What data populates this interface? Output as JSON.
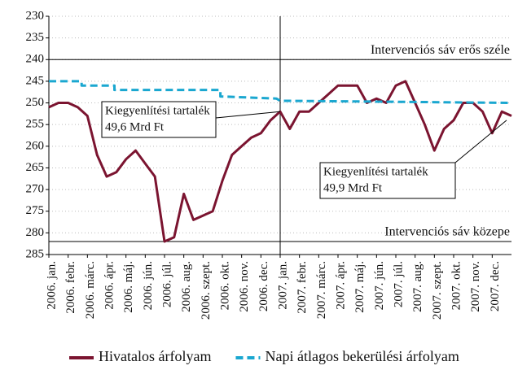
{
  "chart_data": {
    "type": "line",
    "categories": [
      "2006. jan.",
      "2006. febr.",
      "2006. márc.",
      "2006. ápr.",
      "2006. máj.",
      "2006. jún.",
      "2006. júl.",
      "2006. aug.",
      "2006. szept.",
      "2006. okt.",
      "2006. nov.",
      "2006. dec.",
      "2007. jan.",
      "2007. febr.",
      "2007. márc.",
      "2007. ápr.",
      "2007. máj.",
      "2007. jún.",
      "2007. júl.",
      "2007. aug.",
      "2007. szept.",
      "2007. okt.",
      "2007. nov.",
      "2007. dec."
    ],
    "xlim": [
      0,
      24
    ],
    "ylim": [
      230,
      285
    ],
    "y_inverted": true,
    "yticks": [
      230,
      235,
      240,
      245,
      250,
      255,
      260,
      265,
      270,
      275,
      280,
      285
    ],
    "grid": true,
    "legend": "bottom",
    "series": [
      {
        "name": "Hivatalos árfolyam",
        "color": "#7b1430",
        "style": "solid",
        "x": [
          0,
          0.5,
          1,
          1.5,
          2,
          2.5,
          3,
          3.5,
          4,
          4.5,
          5,
          5.5,
          6,
          6.5,
          7,
          7.5,
          8,
          8.5,
          9,
          9.5,
          10,
          10.5,
          11,
          11.5,
          12,
          12.5,
          13,
          13.5,
          14,
          14.5,
          15,
          15.5,
          16,
          16.5,
          17,
          17.5,
          18,
          18.5,
          19,
          19.5,
          20,
          20.5,
          21,
          21.5,
          22,
          22.5,
          23,
          23.5,
          24
        ],
        "values": [
          251,
          250,
          250,
          251,
          253,
          262,
          267,
          266,
          263,
          261,
          264,
          267,
          282,
          281,
          271,
          277,
          276,
          275,
          268,
          262,
          260,
          258,
          257,
          254,
          252,
          256,
          252,
          252,
          250,
          248,
          246,
          246,
          246,
          250,
          249,
          250,
          246,
          245,
          250,
          255,
          261,
          256,
          254,
          250,
          250,
          252,
          257,
          252,
          253
        ]
      },
      {
        "name": "Napi átlagos bekerülési árfolyam",
        "color": "#1aa7d0",
        "style": "dashed",
        "x": [
          0,
          1.7,
          1.7,
          3.4,
          3.4,
          8.9,
          8.9,
          11.8,
          12,
          24
        ],
        "values": [
          245,
          245,
          246,
          246,
          247,
          247,
          248.5,
          249,
          249.5,
          250
        ]
      }
    ],
    "reference_lines": [
      {
        "value": 240,
        "label": "Intervenciós sáv erős széle"
      },
      {
        "value": 282,
        "label": "Intervenciós sáv közepe"
      }
    ],
    "vertical_line": 12,
    "annotations": [
      {
        "lines": [
          "Kiegyenlítési tartalék",
          "49,6 Mrd Ft"
        ]
      },
      {
        "lines": [
          "Kiegyenlítési tartalék",
          "49,9 Mrd Ft"
        ]
      }
    ]
  }
}
